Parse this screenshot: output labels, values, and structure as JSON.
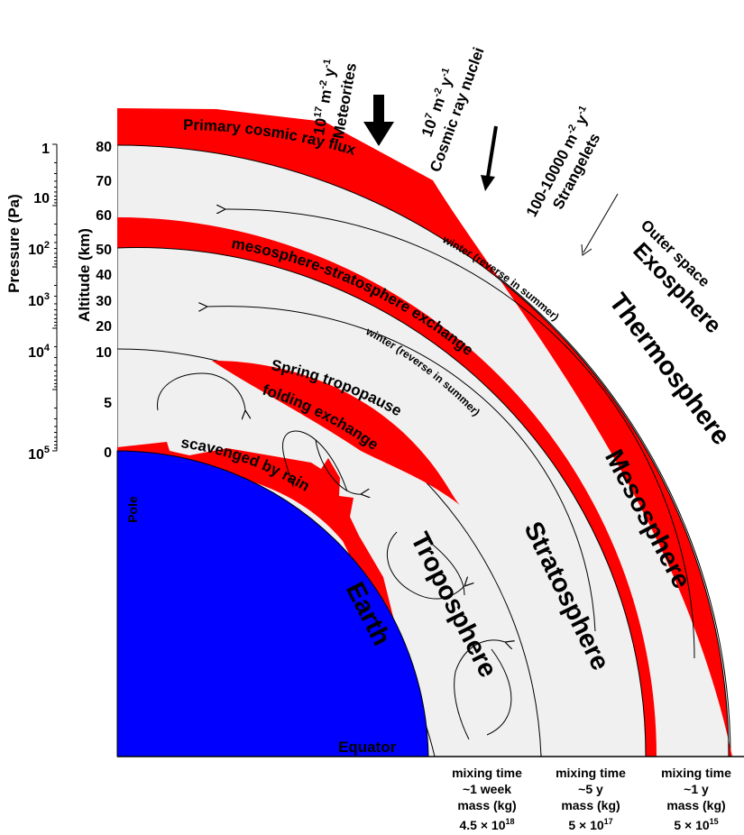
{
  "colors": {
    "earth": "#0000ff",
    "layer_band": "#ff0000",
    "atmosphere": "#f0f0f0",
    "line": "#000000"
  },
  "sources": {
    "meteorites": {
      "rate": "10",
      "rate_exp": "17",
      "units": "m",
      "units_exp": "-2",
      "y": "y",
      "y_exp": "-1",
      "label": "Meteorites"
    },
    "cosmic_rays": {
      "rate": "10",
      "rate_exp": "7",
      "units": "m",
      "units_exp": "-2",
      "y": "y",
      "y_exp": "-1",
      "label": "Cosmic ray nuclei"
    },
    "strangelets": {
      "rate": "100-10000 m",
      "units_exp": "-2",
      "y": "y",
      "y_exp": "-1",
      "label": "Strangelets"
    }
  },
  "axes": {
    "pressure_label": "Pressure (Pa)",
    "altitude_label": "Altitude (km)",
    "pressure_ticks": [
      {
        "base": "1",
        "exp": ""
      },
      {
        "base": "10",
        "exp": ""
      },
      {
        "base": "10",
        "exp": "2"
      },
      {
        "base": "10",
        "exp": "3"
      },
      {
        "base": "10",
        "exp": "4"
      },
      {
        "base": "10",
        "exp": "5"
      }
    ],
    "altitude_ticks": [
      "80",
      "70",
      "60",
      "50",
      "40",
      "30",
      "20",
      "10",
      "5",
      "0"
    ]
  },
  "layers": {
    "primary_flux": "Primary cosmic ray flux",
    "meso_strat_exchange": "mesosphere-stratosphere exchange",
    "winter_upper": "winter (reverse in summer)",
    "winter_lower": "winter (reverse in summer)",
    "spring_tropopause": "Spring  tropopause",
    "folding_exchange": "folding  exchange",
    "scavenged": "scavenged  by rain",
    "outer_space": "Outer space",
    "exosphere": "Exosphere",
    "thermosphere": "Thermosphere",
    "mesosphere": "Mesosphere",
    "stratosphere": "Stratosphere",
    "troposphere": "Troposphere",
    "earth": "Earth",
    "pole": "Pole",
    "equator": "Equator"
  },
  "stats": [
    {
      "mixing_label": "mixing time",
      "mixing_value": "~1 week",
      "mass_label": "mass (kg)",
      "mass_base": "4.5",
      "mass_exp": "18"
    },
    {
      "mixing_label": "mixing time",
      "mixing_value": "~5 y",
      "mass_label": "mass (kg)",
      "mass_base": "5",
      "mass_exp": "17"
    },
    {
      "mixing_label": "mixing time",
      "mixing_value": "~1 y",
      "mass_label": "mass (kg)",
      "mass_base": "5",
      "mass_exp": "15"
    }
  ],
  "stats_times_sign": "×"
}
